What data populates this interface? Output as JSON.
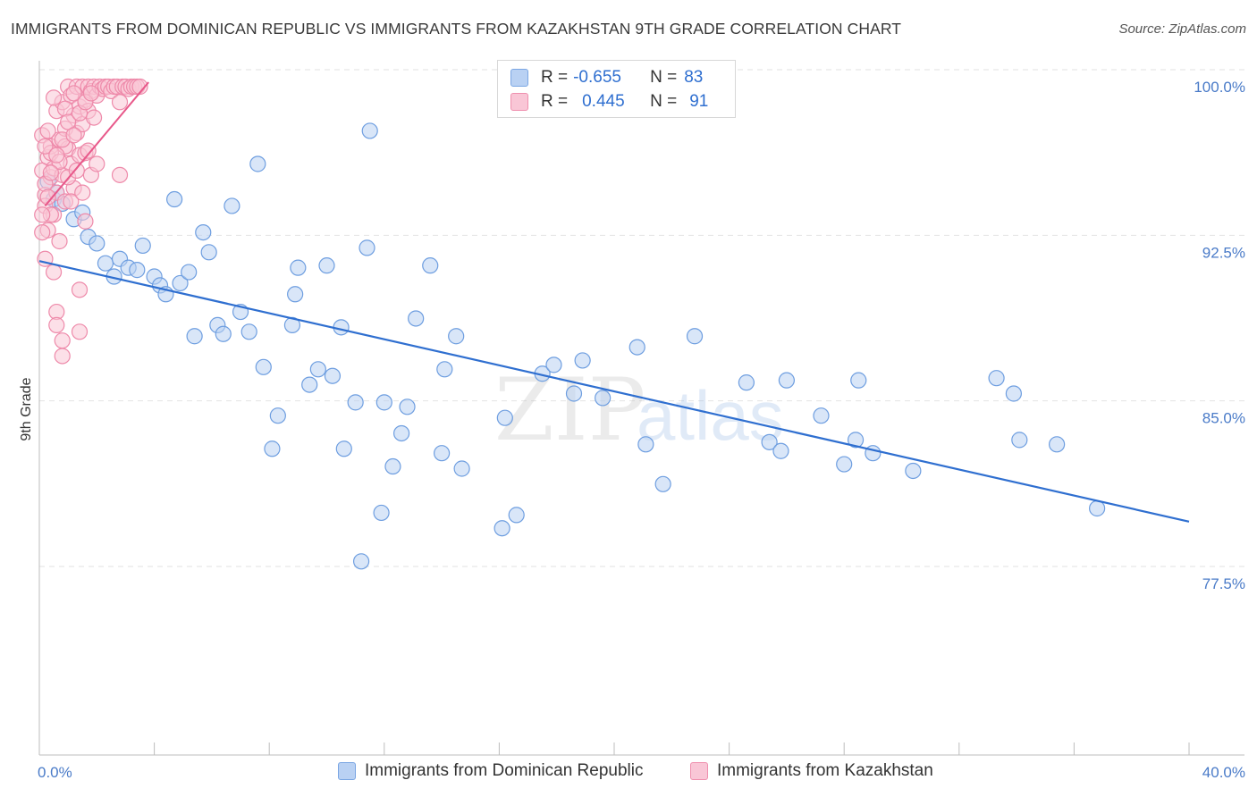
{
  "title": "IMMIGRANTS FROM DOMINICAN REPUBLIC VS IMMIGRANTS FROM KAZAKHSTAN 9TH GRADE CORRELATION CHART",
  "source": "Source: ZipAtlas.com",
  "watermark": {
    "zip": "ZIP",
    "atlas": "atlas"
  },
  "legend": {
    "r_label": "R =",
    "n_label": "N =",
    "rows": [
      {
        "r": "-0.655",
        "n": "83"
      },
      {
        "r": "0.445",
        "n": "91"
      }
    ]
  },
  "colors": {
    "blue": "#2f6fd0",
    "blue_fill": "#b9d1f3",
    "pink": "#e8588a",
    "pink_fill": "#f9c6d6",
    "axis_text": "#4a7bc8"
  },
  "chart_data": {
    "type": "scatter",
    "title": "IMMIGRANTS FROM DOMINICAN REPUBLIC VS IMMIGRANTS FROM KAZAKHSTAN 9TH GRADE CORRELATION CHART",
    "xlabel": "",
    "ylabel": "9th Grade",
    "xlim": [
      0,
      40
    ],
    "ylim": [
      70.0,
      100.8
    ],
    "x_tick_labels": [
      "0.0%",
      "40.0%"
    ],
    "y_ticks": [
      77.5,
      85.0,
      92.5,
      100.0
    ],
    "y_tick_labels": [
      "77.5%",
      "85.0%",
      "92.5%",
      "100.0%"
    ],
    "grid": true,
    "legend_position": "top-center",
    "series": [
      {
        "name": "Immigrants from Dominican Republic",
        "color": "#7aa6e3",
        "trend": [
          [
            0,
            92.1
          ],
          [
            40,
            80.3
          ]
        ],
        "points": [
          [
            0.5,
            94.9
          ],
          [
            0.8,
            94.7
          ],
          [
            1.2,
            94.0
          ],
          [
            1.5,
            94.3
          ],
          [
            1.7,
            93.2
          ],
          [
            2.0,
            92.9
          ],
          [
            2.3,
            92.0
          ],
          [
            2.6,
            91.4
          ],
          [
            2.8,
            92.2
          ],
          [
            3.1,
            91.8
          ],
          [
            3.4,
            91.7
          ],
          [
            3.6,
            92.8
          ],
          [
            4.0,
            91.4
          ],
          [
            4.2,
            91.0
          ],
          [
            4.4,
            90.6
          ],
          [
            4.7,
            94.9
          ],
          [
            4.9,
            91.1
          ],
          [
            5.2,
            91.6
          ],
          [
            5.4,
            88.7
          ],
          [
            5.7,
            93.4
          ],
          [
            5.9,
            92.5
          ],
          [
            6.2,
            89.2
          ],
          [
            6.4,
            88.8
          ],
          [
            6.7,
            94.6
          ],
          [
            7.0,
            89.8
          ],
          [
            7.3,
            88.9
          ],
          [
            7.6,
            96.5
          ],
          [
            7.8,
            87.3
          ],
          [
            8.3,
            85.1
          ],
          [
            8.1,
            83.6
          ],
          [
            8.8,
            89.2
          ],
          [
            8.9,
            90.6
          ],
          [
            9.0,
            91.8
          ],
          [
            9.4,
            86.5
          ],
          [
            9.7,
            87.2
          ],
          [
            10.0,
            91.9
          ],
          [
            10.2,
            86.9
          ],
          [
            10.5,
            89.1
          ],
          [
            10.6,
            83.6
          ],
          [
            11.0,
            85.7
          ],
          [
            11.2,
            78.5
          ],
          [
            11.4,
            92.7
          ],
          [
            11.5,
            98.0
          ],
          [
            11.9,
            80.7
          ],
          [
            12.0,
            85.7
          ],
          [
            12.3,
            82.8
          ],
          [
            12.6,
            84.3
          ],
          [
            12.8,
            85.5
          ],
          [
            13.1,
            89.5
          ],
          [
            13.6,
            91.9
          ],
          [
            14.0,
            83.4
          ],
          [
            14.1,
            87.2
          ],
          [
            14.5,
            88.7
          ],
          [
            14.7,
            82.7
          ],
          [
            16.1,
            80.0
          ],
          [
            16.2,
            85.0
          ],
          [
            16.6,
            80.6
          ],
          [
            17.5,
            87.0
          ],
          [
            17.9,
            87.4
          ],
          [
            18.6,
            86.1
          ],
          [
            18.9,
            87.6
          ],
          [
            19.6,
            85.9
          ],
          [
            20.8,
            88.2
          ],
          [
            21.1,
            83.8
          ],
          [
            21.7,
            82.0
          ],
          [
            22.8,
            88.7
          ],
          [
            24.6,
            86.6
          ],
          [
            25.4,
            83.9
          ],
          [
            25.8,
            83.5
          ],
          [
            26.0,
            86.7
          ],
          [
            27.2,
            85.1
          ],
          [
            28.0,
            82.9
          ],
          [
            28.5,
            86.7
          ],
          [
            28.4,
            84.0
          ],
          [
            29.0,
            83.4
          ],
          [
            30.4,
            82.6
          ],
          [
            33.3,
            86.8
          ],
          [
            33.9,
            86.1
          ],
          [
            34.1,
            84.0
          ],
          [
            35.4,
            83.8
          ],
          [
            36.8,
            80.9
          ],
          [
            0.3,
            95.7
          ],
          [
            0.6,
            95.2
          ]
        ]
      },
      {
        "name": "Immigrants from Kazakhstan",
        "color": "#ef8fae",
        "trend": [
          [
            0.2,
            94.6
          ],
          [
            3.8,
            100.2
          ]
        ],
        "points": [
          [
            0.1,
            97.8
          ],
          [
            0.1,
            96.2
          ],
          [
            0.2,
            95.1
          ],
          [
            0.2,
            94.6
          ],
          [
            0.3,
            93.5
          ],
          [
            0.3,
            96.8
          ],
          [
            0.4,
            97.3
          ],
          [
            0.4,
            95.9
          ],
          [
            0.5,
            96.3
          ],
          [
            0.5,
            94.2
          ],
          [
            0.6,
            98.9
          ],
          [
            0.6,
            95.2
          ],
          [
            0.7,
            97.6
          ],
          [
            0.7,
            93.0
          ],
          [
            0.8,
            99.3
          ],
          [
            0.8,
            96.0
          ],
          [
            0.9,
            98.1
          ],
          [
            0.9,
            94.8
          ],
          [
            1.0,
            100.0
          ],
          [
            1.0,
            97.2
          ],
          [
            1.1,
            99.6
          ],
          [
            1.1,
            96.5
          ],
          [
            1.2,
            98.7
          ],
          [
            1.2,
            95.4
          ],
          [
            1.3,
            100.0
          ],
          [
            1.3,
            97.9
          ],
          [
            1.4,
            99.1
          ],
          [
            1.4,
            96.9
          ],
          [
            1.5,
            100.0
          ],
          [
            1.5,
            98.3
          ],
          [
            1.6,
            99.4
          ],
          [
            1.6,
            97.0
          ],
          [
            1.7,
            100.0
          ],
          [
            1.7,
            98.9
          ],
          [
            1.8,
            99.8
          ],
          [
            1.8,
            96.0
          ],
          [
            1.9,
            100.0
          ],
          [
            2.0,
            99.6
          ],
          [
            2.1,
            100.0
          ],
          [
            2.2,
            99.9
          ],
          [
            2.3,
            100.0
          ],
          [
            2.4,
            100.0
          ],
          [
            2.5,
            99.8
          ],
          [
            2.6,
            100.0
          ],
          [
            2.7,
            100.0
          ],
          [
            2.8,
            99.3
          ],
          [
            2.9,
            100.0
          ],
          [
            3.0,
            100.0
          ],
          [
            3.1,
            99.9
          ],
          [
            3.2,
            100.0
          ],
          [
            3.3,
            100.0
          ],
          [
            3.4,
            100.0
          ],
          [
            3.5,
            100.0
          ],
          [
            0.5,
            91.6
          ],
          [
            0.6,
            89.8
          ],
          [
            0.6,
            89.2
          ],
          [
            0.8,
            88.5
          ],
          [
            0.8,
            87.8
          ],
          [
            1.4,
            90.8
          ],
          [
            1.4,
            88.9
          ],
          [
            0.1,
            93.4
          ],
          [
            0.2,
            92.2
          ],
          [
            0.3,
            98.0
          ],
          [
            0.4,
            97.0
          ],
          [
            0.2,
            95.6
          ],
          [
            0.4,
            94.2
          ],
          [
            0.7,
            96.6
          ],
          [
            0.9,
            97.3
          ],
          [
            1.0,
            95.9
          ],
          [
            1.1,
            94.8
          ],
          [
            1.3,
            96.2
          ],
          [
            1.5,
            95.2
          ],
          [
            1.6,
            93.9
          ],
          [
            1.7,
            97.1
          ],
          [
            1.9,
            98.6
          ],
          [
            2.0,
            96.5
          ],
          [
            1.2,
            99.7
          ],
          [
            0.9,
            99.0
          ],
          [
            0.5,
            99.5
          ],
          [
            2.8,
            96.0
          ],
          [
            0.3,
            95.0
          ],
          [
            0.1,
            94.2
          ],
          [
            0.2,
            97.3
          ],
          [
            0.4,
            96.1
          ],
          [
            0.6,
            96.9
          ],
          [
            0.8,
            97.6
          ],
          [
            1.0,
            98.4
          ],
          [
            1.2,
            97.8
          ],
          [
            1.4,
            98.8
          ],
          [
            1.6,
            99.3
          ],
          [
            1.8,
            99.7
          ]
        ]
      }
    ]
  }
}
